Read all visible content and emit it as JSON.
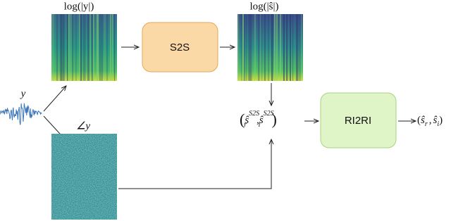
{
  "inputs": {
    "waveform_label": "y",
    "magnitude_label": "log(|y|)",
    "phase_label": "∠y"
  },
  "nodes": [
    {
      "label": "S2S"
    },
    {
      "label": "RI2RI"
    }
  ],
  "outputs": {
    "s2s_magnitude_label": "log(|ŝ|)",
    "intermediate": {
      "open": "(",
      "real": "ŝ",
      "real_sub": "r",
      "real_sup": "S2S",
      "sep": ",",
      "imag": "ŝ",
      "imag_sub": "i",
      "imag_sup": "S2S",
      "close": ")"
    },
    "final": {
      "open": "(",
      "real": "ŝ",
      "real_sub": "r",
      "sep": ",",
      "imag": "ŝ",
      "imag_sub": "i",
      "close": ")"
    }
  }
}
